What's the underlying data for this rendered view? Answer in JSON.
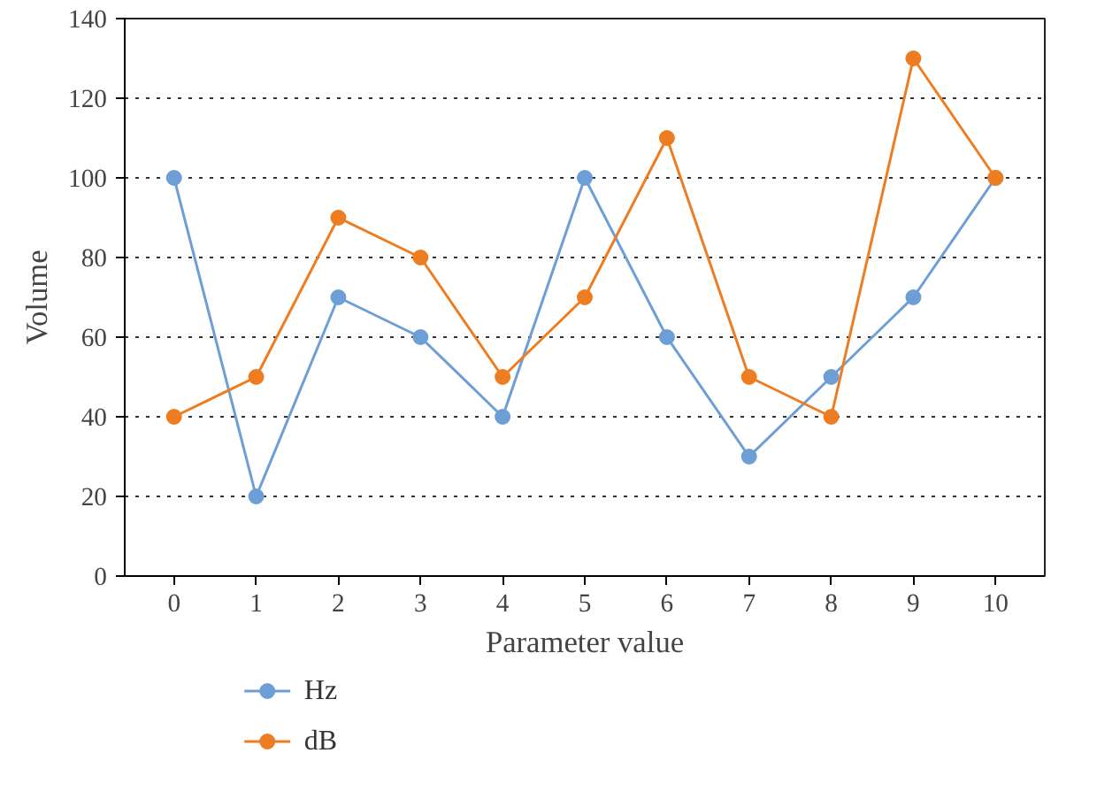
{
  "chart_data": {
    "type": "line",
    "xlabel": "Parameter value",
    "ylabel": "Volume",
    "x": [
      0,
      1,
      2,
      3,
      4,
      5,
      6,
      7,
      8,
      9,
      10
    ],
    "series": [
      {
        "name": "Hz",
        "color": "#6d9fd6",
        "values": [
          100,
          20,
          70,
          60,
          40,
          100,
          60,
          30,
          50,
          70,
          100
        ]
      },
      {
        "name": "dB",
        "color": "#ee7d22",
        "values": [
          40,
          50,
          90,
          80,
          50,
          70,
          110,
          50,
          40,
          130,
          100
        ]
      }
    ],
    "xlim": [
      -0.6,
      10.6
    ],
    "xticks": [
      0,
      1,
      2,
      3,
      4,
      5,
      6,
      7,
      8,
      9,
      10
    ],
    "ylim": [
      0,
      140
    ],
    "yticks": [
      0,
      20,
      40,
      60,
      80,
      100,
      120,
      140
    ],
    "grid": "y",
    "legend": "bottom",
    "marker": "circle",
    "line_style": "solid"
  }
}
